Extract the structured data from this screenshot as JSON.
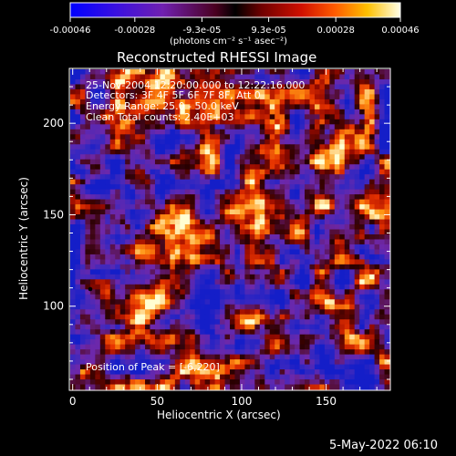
{
  "colorbar": {
    "ticks": [
      "-0.00046",
      "-0.00028",
      "-9.3e-05",
      "9.3e-05",
      "0.00028",
      "0.00046"
    ],
    "tick_values": [
      -0.00046,
      -0.00028,
      -9.3e-05,
      9.3e-05,
      0.00028,
      0.00046
    ],
    "range": [
      -0.00046,
      0.00046
    ],
    "units": "(photons cm⁻² s⁻¹ asec⁻²)",
    "colors": [
      "#0000ff",
      "#4a00c8",
      "#7a1ea0",
      "#5a0000",
      "#b80000",
      "#ff4a00",
      "#ffb000",
      "#ffffe0"
    ]
  },
  "chart_data": {
    "type": "heatmap",
    "title": "Reconstructed RHESSI Image",
    "xlabel": "Heliocentric X (arcsec)",
    "ylabel": "Heliocentric Y (arcsec)",
    "xlim": [
      -2,
      188
    ],
    "ylim": [
      54,
      230
    ],
    "xticks": [
      0,
      50,
      100,
      150
    ],
    "yticks": [
      100,
      150,
      200
    ],
    "annotations": [
      "25-Nov-2004 12:20:00.000 to 12:22:16.000",
      "Detectors: 3F 4F 5F 6F 7F 8F, Att 0",
      "Energy Range: 25.0 - 50.0 keV",
      "Clean     Total counts: 2.40E+03"
    ],
    "peak_label": "Position of Peak = [-6,220]",
    "grid": false,
    "image_description": "noisy reconstructed map with intensity ranging from negative (blue/purple) to positive (red/yellow) values"
  },
  "timestamp": "5-May-2022 06:10"
}
